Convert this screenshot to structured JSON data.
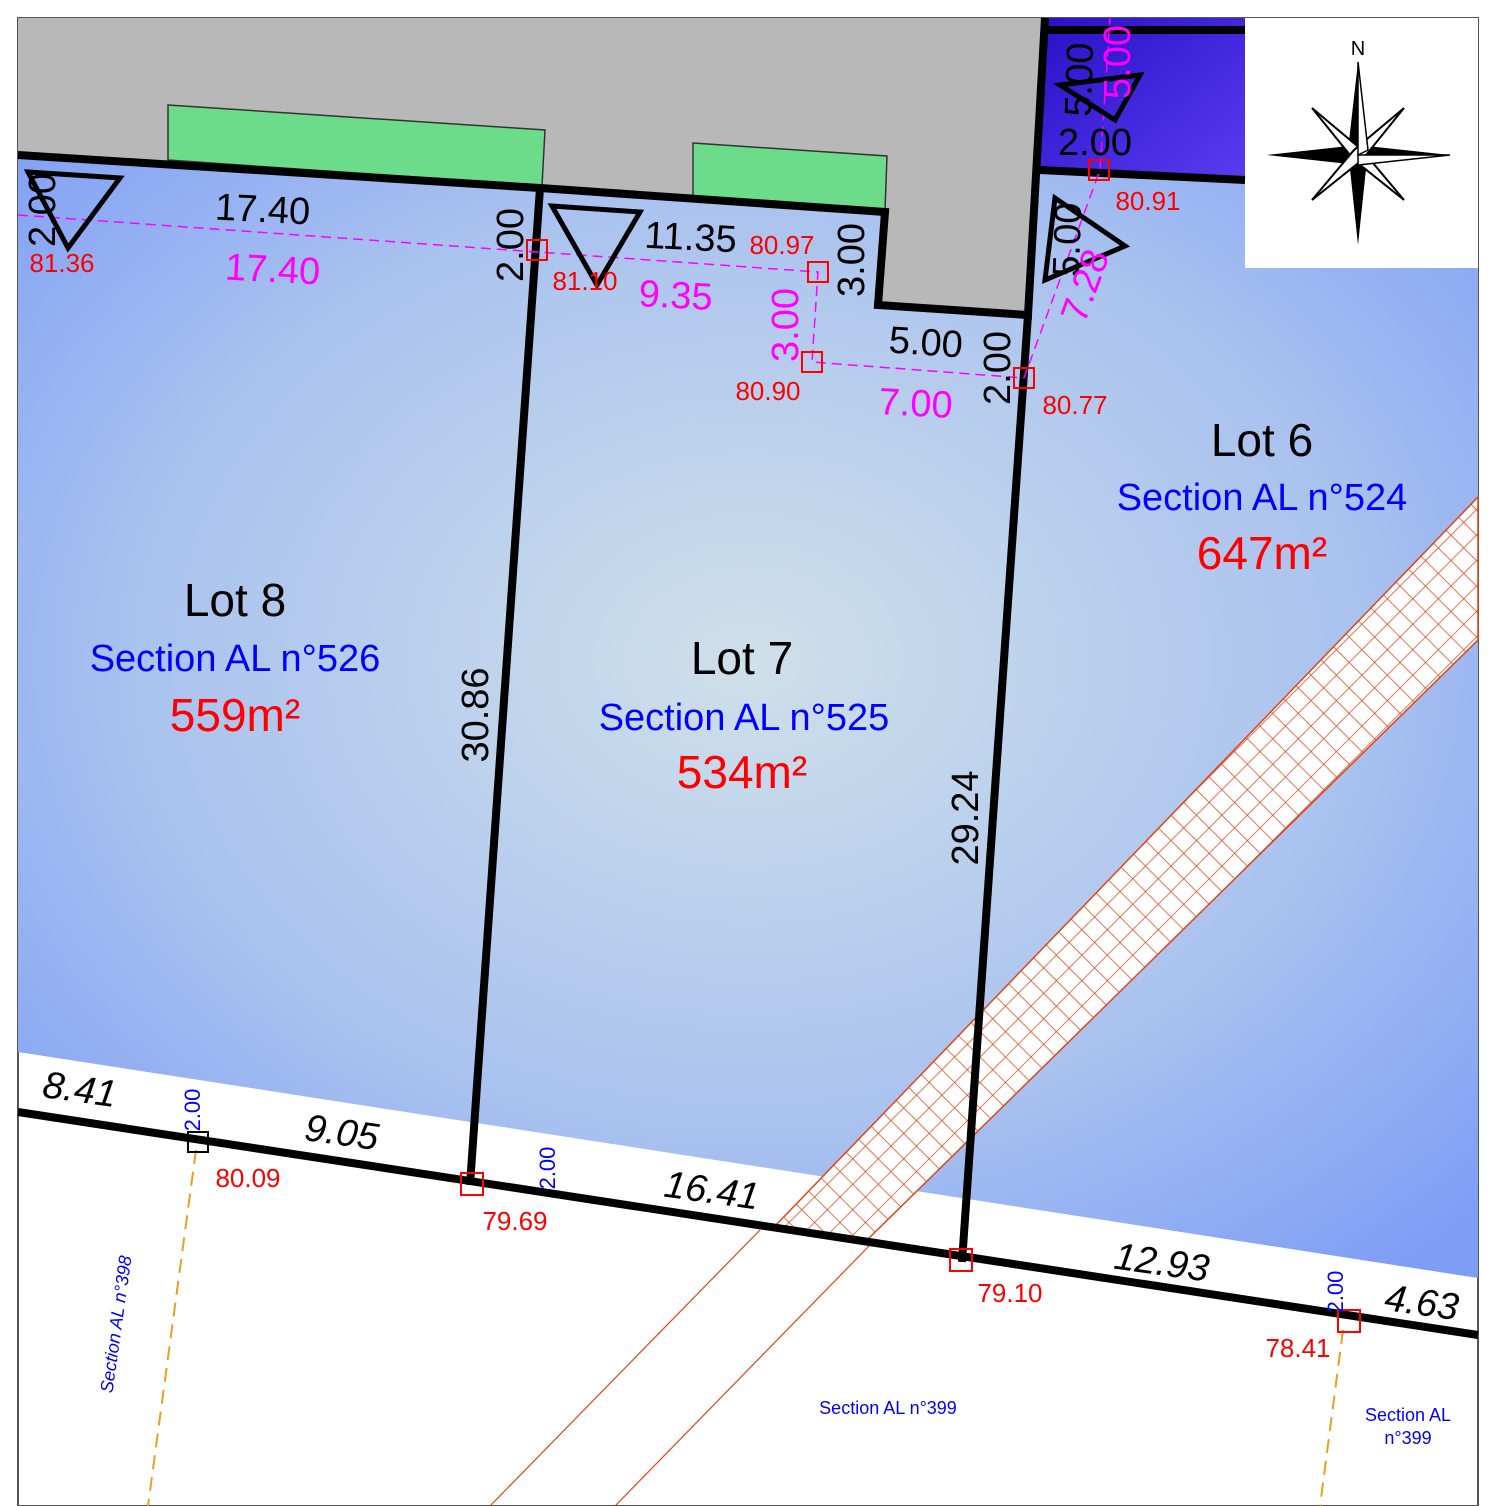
{
  "compass_label": "N",
  "lots": [
    {
      "label": "Lot 8",
      "section": "Section AL n°526",
      "area": "559m²"
    },
    {
      "label": "Lot 7",
      "section": "Section AL n°525",
      "area": "534m²"
    },
    {
      "label": "Lot 6",
      "section": "Section AL n°524",
      "area": "647m²"
    }
  ],
  "dimensions": [
    "17.40",
    "11.35",
    "2.00",
    "2.00",
    "3.00",
    "5.00",
    "2.00",
    "5.00",
    "2.00",
    "5.00",
    "30.86",
    "29.24",
    "8.41",
    "9.05",
    "16.41",
    "12.93",
    "4.63"
  ],
  "offsets": [
    "17.40",
    "9.35",
    "3.00",
    "7.00",
    "5.00",
    "7.28"
  ],
  "elevations": [
    "81.36",
    "81.10",
    "80.97",
    "80.90",
    "80.77",
    "80.91",
    "80.09",
    "79.69",
    "79.10",
    "78.41"
  ],
  "setbacks": [
    "2.00",
    "2.00",
    "2.00"
  ],
  "parcel_labels": [
    "Section AL n°398",
    "Section AL n°399",
    "Section AL",
    "n°399"
  ]
}
